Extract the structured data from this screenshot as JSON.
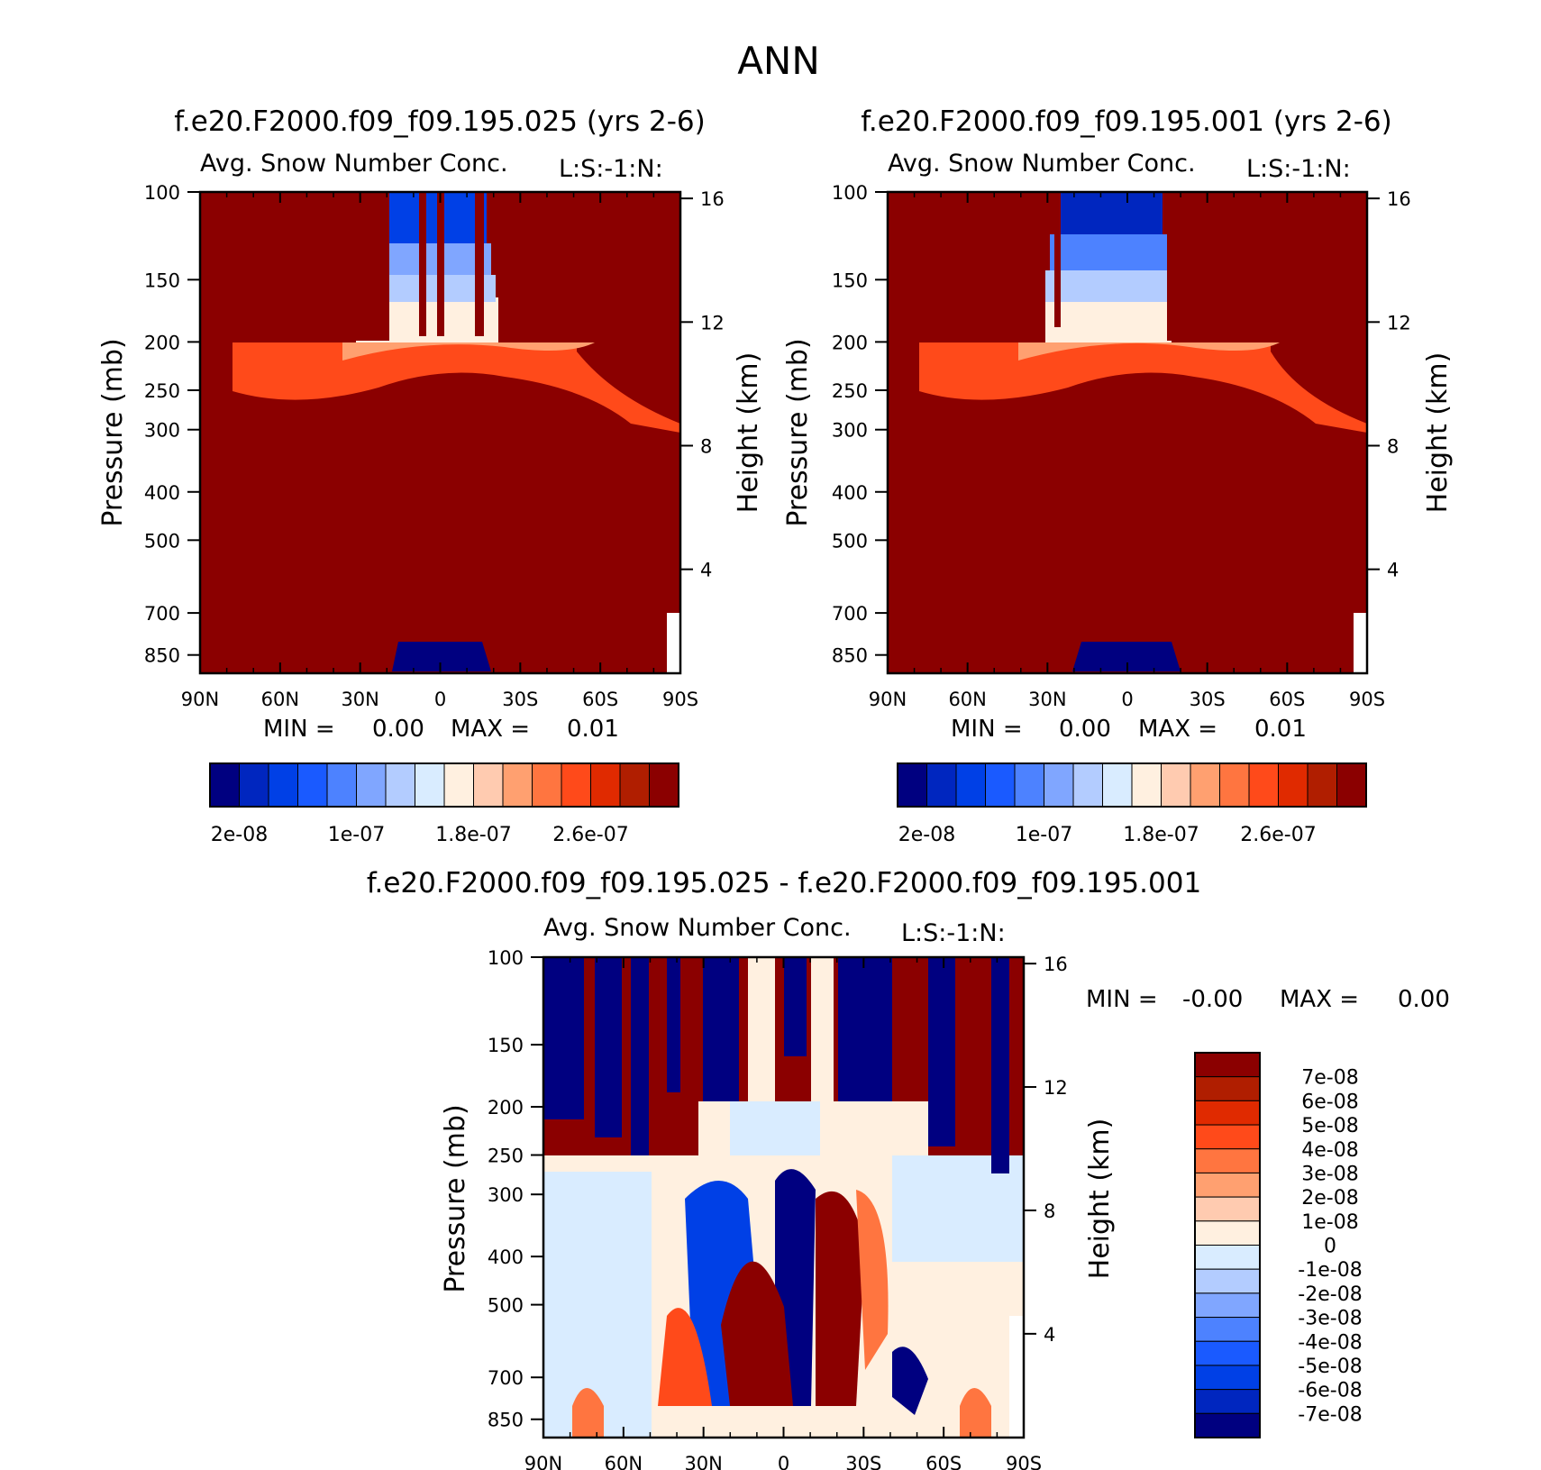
{
  "page_title": "ANN",
  "colors": {
    "abs": [
      "#000080",
      "#0026bf",
      "#0040e6",
      "#1a5aff",
      "#4d82ff",
      "#80a6ff",
      "#b3ccff",
      "#d9ecff",
      "#fff0e0",
      "#ffcbb0",
      "#ffa070",
      "#ff7540",
      "#ff4a1a",
      "#e02a00",
      "#b01e00",
      "#8b0000"
    ],
    "diff": [
      "#000080",
      "#0026bf",
      "#0040e6",
      "#1a5aff",
      "#4d82ff",
      "#80a6ff",
      "#b3ccff",
      "#d9ecff",
      "#fff0e0",
      "#ffcbb0",
      "#ffa070",
      "#ff7540",
      "#ff4a1a",
      "#e02a00",
      "#b01e00",
      "#8b0000"
    ]
  },
  "chart_data": [
    {
      "type": "heatmap",
      "title": "f.e20.F2000.f09_f09.195.025 (yrs 2-6)",
      "subtitle": "Avg. Snow Number Conc.",
      "corner_label": "L:S:-1:N:",
      "ylabel": "Pressure (mb)",
      "y2label": "Height (km)",
      "x_ticks": [
        "90N",
        "60N",
        "30N",
        "0",
        "30S",
        "60S",
        "90S"
      ],
      "y_ticks": [
        "100",
        "150",
        "200",
        "250",
        "300",
        "400",
        "500",
        "700",
        "850"
      ],
      "y2_ticks": [
        "16",
        "12",
        "8",
        "4"
      ],
      "ylim": [
        100,
        925
      ],
      "min_label": "MIN =",
      "min_value": "0.00",
      "max_label": "MAX =",
      "max_value": "0.01",
      "colorbar_labels": [
        "2e-08",
        "1e-07",
        "1.8e-07",
        "2.6e-07"
      ]
    },
    {
      "type": "heatmap",
      "title": "f.e20.F2000.f09_f09.195.001 (yrs 2-6)",
      "subtitle": "Avg. Snow Number Conc.",
      "corner_label": "L:S:-1:N:",
      "ylabel": "Pressure (mb)",
      "y2label": "Height (km)",
      "x_ticks": [
        "90N",
        "60N",
        "30N",
        "0",
        "30S",
        "60S",
        "90S"
      ],
      "y_ticks": [
        "100",
        "150",
        "200",
        "250",
        "300",
        "400",
        "500",
        "700",
        "850"
      ],
      "y2_ticks": [
        "16",
        "12",
        "8",
        "4"
      ],
      "ylim": [
        100,
        925
      ],
      "min_label": "MIN =",
      "min_value": "0.00",
      "max_label": "MAX =",
      "max_value": "0.01",
      "colorbar_labels": [
        "2e-08",
        "1e-07",
        "1.8e-07",
        "2.6e-07"
      ]
    },
    {
      "type": "heatmap",
      "title": "f.e20.F2000.f09_f09.195.025 - f.e20.F2000.f09_f09.195.001",
      "subtitle": "Avg. Snow Number Conc.",
      "corner_label": "L:S:-1:N:",
      "ylabel": "Pressure (mb)",
      "y2label": "Height (km)",
      "x_ticks": [
        "90N",
        "60N",
        "30N",
        "0",
        "30S",
        "60S",
        "90S"
      ],
      "y_ticks": [
        "100",
        "150",
        "200",
        "250",
        "300",
        "400",
        "500",
        "700",
        "850"
      ],
      "y2_ticks": [
        "16",
        "12",
        "8",
        "4"
      ],
      "ylim": [
        100,
        925
      ],
      "min_label": "MIN =",
      "min_value": "-0.00",
      "max_label": "MAX =",
      "max_value": "0.00",
      "colorbar_labels": [
        "7e-08",
        "6e-08",
        "5e-08",
        "4e-08",
        "3e-08",
        "2e-08",
        "1e-08",
        "0",
        "-1e-08",
        "-2e-08",
        "-3e-08",
        "-4e-08",
        "-5e-08",
        "-6e-08",
        "-7e-08"
      ]
    }
  ]
}
